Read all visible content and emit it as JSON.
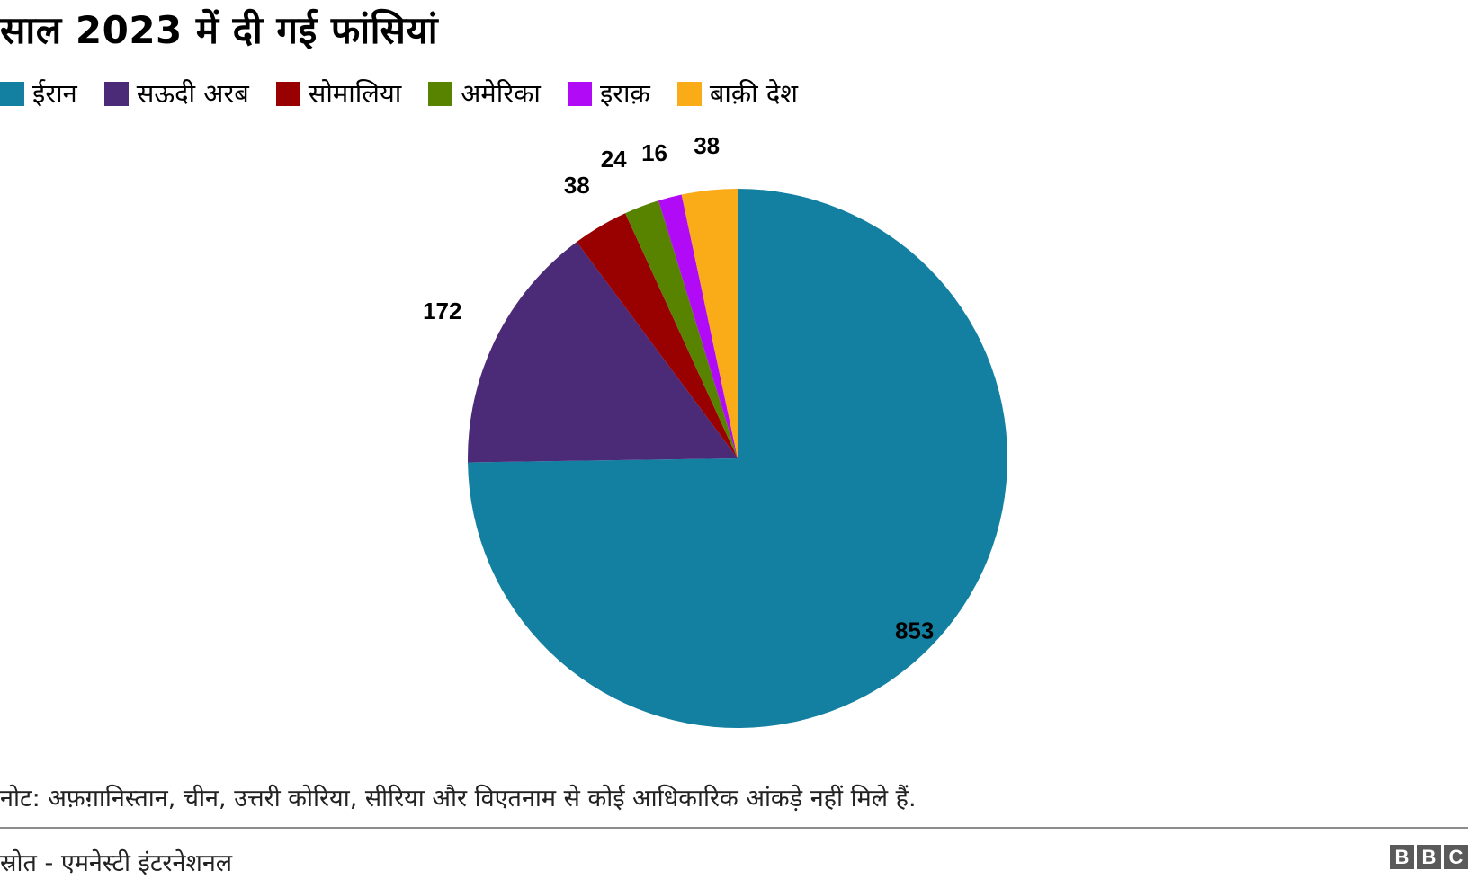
{
  "chart_data": {
    "type": "pie",
    "title": "साल 2023 में दी गई फांसियां",
    "categories": [
      "ईरान",
      "सऊदी अरब",
      "सोमालिया",
      "अमेरिका",
      "इराक़",
      "बाक़ी देश"
    ],
    "values": [
      853,
      172,
      38,
      24,
      16,
      38
    ],
    "colors": [
      "#1380a1",
      "#4b2a78",
      "#990000",
      "#588300",
      "#b00af7",
      "#faab18"
    ],
    "legend_position": "top-left",
    "start_angle_deg": 0,
    "direction": "clockwise"
  },
  "note": "नोट: अफ़ग़ानिस्तान, चीन, उत्तरी कोरिया, सीरिया और विएतनाम से कोई आधिकारिक आंकड़े नहीं मिले हैं.",
  "source": "स्रोत - एमनेस्टी इंटरनेशनल",
  "logo": {
    "letters": [
      "B",
      "B",
      "C"
    ]
  }
}
